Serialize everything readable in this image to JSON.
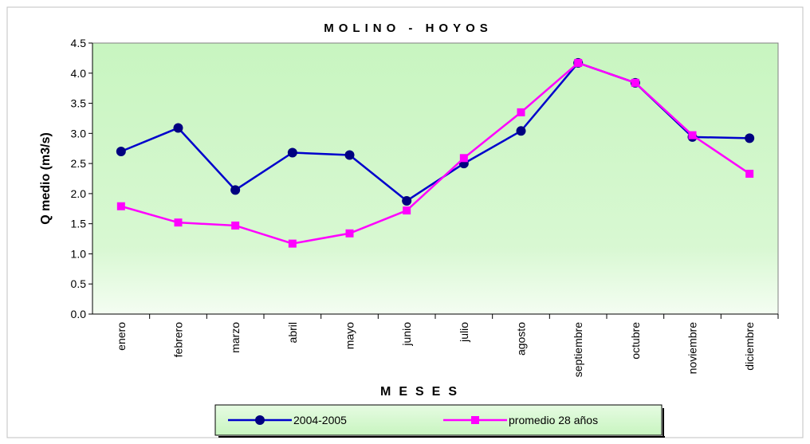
{
  "chart_data": {
    "type": "line",
    "title": "MOLINO - HOYOS",
    "x_label": "MESES",
    "y_label": "Q medio (m3/s)",
    "categories": [
      "enero",
      "febrero",
      "marzo",
      "abril",
      "mayo",
      "junio",
      "julio",
      "agosto",
      "septiembre",
      "octubre",
      "noviembre",
      "diciembre"
    ],
    "series": [
      {
        "name": "2004-2005",
        "color": "#0000cc",
        "marker_color": "#000080",
        "marker": "circle",
        "values": [
          2.7,
          3.09,
          2.06,
          2.68,
          2.64,
          1.88,
          2.5,
          3.04,
          4.17,
          3.84,
          2.94,
          2.92
        ]
      },
      {
        "name": "promedio 28 años",
        "color": "#ff00ff",
        "marker_color": "#ff00ff",
        "marker": "square",
        "values": [
          1.79,
          1.52,
          1.47,
          1.17,
          1.34,
          1.72,
          2.59,
          3.35,
          4.17,
          3.84,
          2.97,
          2.33
        ]
      }
    ],
    "ylim": [
      0,
      4.5
    ],
    "yticks": [
      {
        "value": 0,
        "label": "0.0"
      },
      0.5,
      {
        "value": 1,
        "label": "1.0"
      },
      1.5,
      {
        "value": 2,
        "label": "2.0"
      },
      2.5,
      {
        "value": 3,
        "label": "3.0"
      },
      3.5,
      {
        "value": 4,
        "label": "4.0"
      },
      4.5
    ],
    "legend": "bottom"
  }
}
